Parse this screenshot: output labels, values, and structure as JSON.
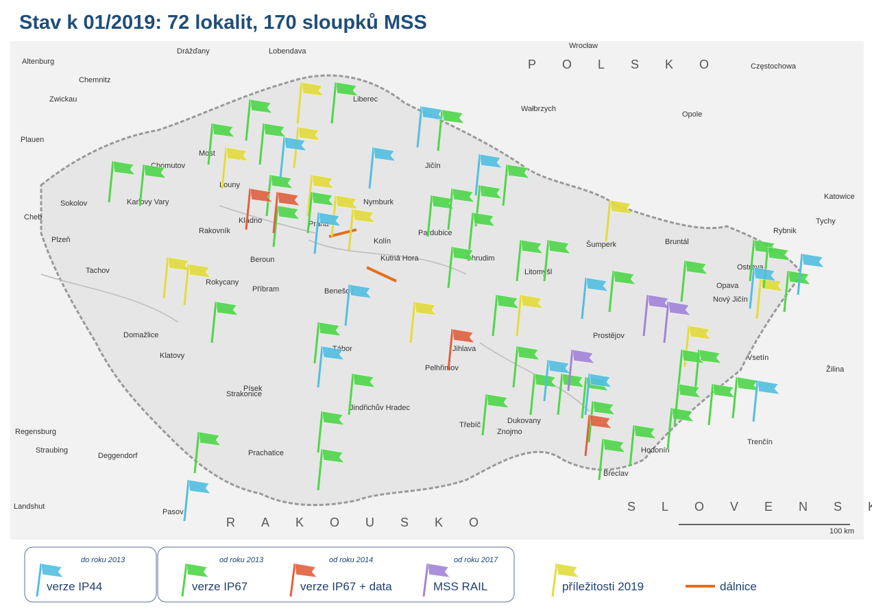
{
  "title": "Stav k 01/2019: 72 lokalit, 170 sloupků MSS",
  "map": {
    "scale": "100 km",
    "countries": [
      "RAKOUSKO",
      "SLOVENSKO",
      "POLSKO"
    ],
    "places": [
      "Drážďany",
      "Lobendava",
      "Wrocław",
      "Częstochowa",
      "Altenburg",
      "Chemnitz",
      "Zwickau",
      "Liberec",
      "Wałbrzych",
      "Opole",
      "Plauen",
      "Chomutov",
      "Most",
      "Louny",
      "Sokolov",
      "Cheb",
      "Karlovy Vary",
      "Rakovník",
      "Praha",
      "Beroun",
      "Nymburk",
      "Kolín",
      "Jičín",
      "Pardubice",
      "Chrudim",
      "Litomyšl",
      "Tachov",
      "Plzeň",
      "Rokycany",
      "Příbram",
      "Benešov",
      "Tábor",
      "Písek",
      "Klatovy",
      "Strakonice",
      "Prachatice",
      "Jindřichův Hradec",
      "Třebíč",
      "Znojmo",
      "Prostějov",
      "Šumperk",
      "Bruntál",
      "Ostrava",
      "Opava",
      "Nový Jičín",
      "Vsetín",
      "Žilina",
      "Trenčín",
      "Břeclav",
      "Hodonín",
      "Katowice",
      "Tychy",
      "Rybnik",
      "Regensburg",
      "Straubing",
      "Deggendorf",
      "Landshut",
      "Pasov",
      "Domažlice",
      "Kladno",
      "Kutná Hora",
      "Jihlava",
      "Pelhřimov",
      "Dukovany"
    ]
  },
  "legend": [
    {
      "since": "do roku 2013",
      "label": "verze IP44"
    },
    {
      "since": "od  roku 2013",
      "label": "verze IP67"
    },
    {
      "since": "od roku 2014",
      "label": "verze IP67 + data"
    },
    {
      "since": "od roku 2017",
      "label": "MSS RAIL"
    },
    {
      "label": "příležitosti 2019"
    },
    {
      "label": "dálnice"
    }
  ]
}
